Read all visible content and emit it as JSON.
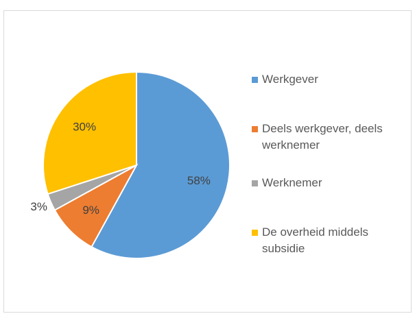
{
  "chart_data": {
    "type": "pie",
    "categories": [
      "Werkgever",
      "Deels werkgever, deels werknemer",
      "Werknemer",
      "De overheid middels subsidie"
    ],
    "values": [
      58,
      9,
      3,
      30
    ],
    "value_labels": [
      "58%",
      "9%",
      "3%",
      "30%"
    ],
    "colors": [
      "#5b9bd5",
      "#ed7d31",
      "#a5a5a5",
      "#ffc000"
    ],
    "legend": "right"
  }
}
